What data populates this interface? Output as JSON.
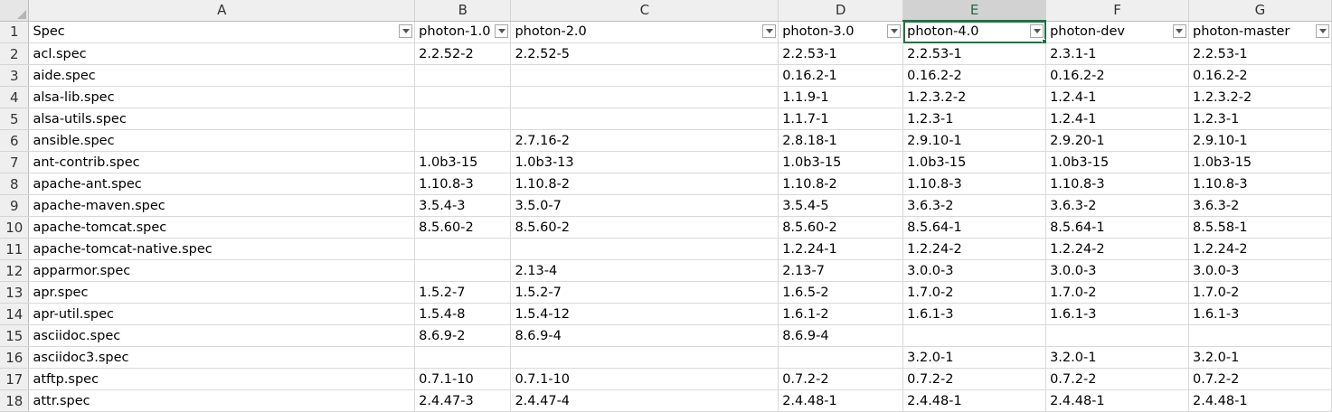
{
  "columns": [
    "A",
    "B",
    "C",
    "D",
    "E",
    "F",
    "G"
  ],
  "active_column": "E",
  "header_row_number": "1",
  "headers": [
    "Spec",
    "photon-1.0",
    "photon-2.0",
    "photon-3.0",
    "photon-4.0",
    "photon-dev",
    "photon-master"
  ],
  "rows": [
    {
      "n": "2",
      "cells": [
        "acl.spec",
        "2.2.52-2",
        "2.2.52-5",
        "2.2.53-1",
        "2.2.53-1",
        "2.3.1-1",
        "2.2.53-1"
      ]
    },
    {
      "n": "3",
      "cells": [
        "aide.spec",
        "",
        "",
        "0.16.2-1",
        "0.16.2-2",
        "0.16.2-2",
        "0.16.2-2"
      ]
    },
    {
      "n": "4",
      "cells": [
        "alsa-lib.spec",
        "",
        "",
        "1.1.9-1",
        "1.2.3.2-2",
        "1.2.4-1",
        "1.2.3.2-2"
      ]
    },
    {
      "n": "5",
      "cells": [
        "alsa-utils.spec",
        "",
        "",
        "1.1.7-1",
        "1.2.3-1",
        "1.2.4-1",
        "1.2.3-1"
      ]
    },
    {
      "n": "6",
      "cells": [
        "ansible.spec",
        "",
        "2.7.16-2",
        "2.8.18-1",
        "2.9.10-1",
        "2.9.20-1",
        "2.9.10-1"
      ]
    },
    {
      "n": "7",
      "cells": [
        "ant-contrib.spec",
        "1.0b3-15",
        "1.0b3-13",
        "1.0b3-15",
        "1.0b3-15",
        "1.0b3-15",
        "1.0b3-15"
      ]
    },
    {
      "n": "8",
      "cells": [
        "apache-ant.spec",
        "1.10.8-3",
        "1.10.8-2",
        "1.10.8-2",
        "1.10.8-3",
        "1.10.8-3",
        "1.10.8-3"
      ]
    },
    {
      "n": "9",
      "cells": [
        "apache-maven.spec",
        "3.5.4-3",
        "3.5.0-7",
        "3.5.4-5",
        "3.6.3-2",
        "3.6.3-2",
        "3.6.3-2"
      ]
    },
    {
      "n": "10",
      "cells": [
        "apache-tomcat.spec",
        "8.5.60-2",
        "8.5.60-2",
        "8.5.60-2",
        "8.5.64-1",
        "8.5.64-1",
        "8.5.58-1"
      ]
    },
    {
      "n": "11",
      "cells": [
        "apache-tomcat-native.spec",
        "",
        "",
        "1.2.24-1",
        "1.2.24-2",
        "1.2.24-2",
        "1.2.24-2"
      ]
    },
    {
      "n": "12",
      "cells": [
        "apparmor.spec",
        "",
        "2.13-4",
        "2.13-7",
        "3.0.0-3",
        "3.0.0-3",
        "3.0.0-3"
      ]
    },
    {
      "n": "13",
      "cells": [
        "apr.spec",
        "1.5.2-7",
        "1.5.2-7",
        "1.6.5-2",
        "1.7.0-2",
        "1.7.0-2",
        "1.7.0-2"
      ]
    },
    {
      "n": "14",
      "cells": [
        "apr-util.spec",
        "1.5.4-8",
        "1.5.4-12",
        "1.6.1-2",
        "1.6.1-3",
        "1.6.1-3",
        "1.6.1-3"
      ]
    },
    {
      "n": "15",
      "cells": [
        "asciidoc.spec",
        "8.6.9-2",
        "8.6.9-4",
        "8.6.9-4",
        "",
        "",
        ""
      ]
    },
    {
      "n": "16",
      "cells": [
        "asciidoc3.spec",
        "",
        "",
        "",
        "3.2.0-1",
        "3.2.0-1",
        "3.2.0-1"
      ]
    },
    {
      "n": "17",
      "cells": [
        "atftp.spec",
        "0.7.1-10",
        "0.7.1-10",
        "0.7.2-2",
        "0.7.2-2",
        "0.7.2-2",
        "0.7.2-2"
      ]
    },
    {
      "n": "18",
      "cells": [
        "attr.spec",
        "2.4.47-3",
        "2.4.47-4",
        "2.4.48-1",
        "2.4.48-1",
        "2.4.48-1",
        "2.4.48-1"
      ]
    }
  ]
}
